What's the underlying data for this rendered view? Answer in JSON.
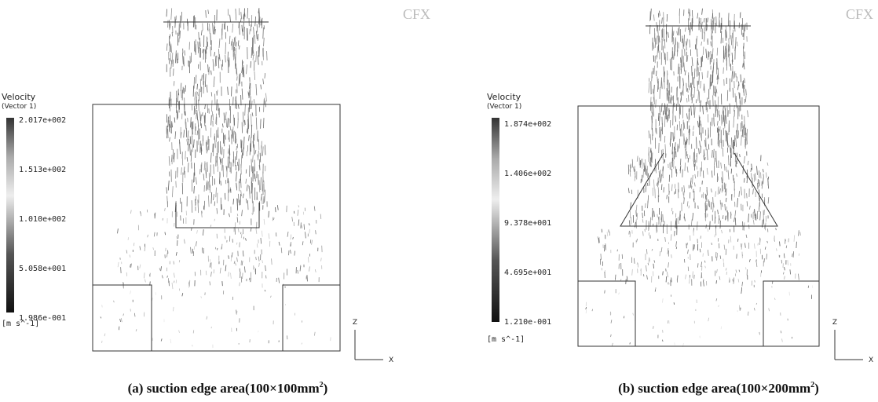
{
  "panels": [
    {
      "logo": "CFX",
      "legend": {
        "title": "Velocity",
        "subtitle": "(Vector 1)",
        "labels": [
          "2.017e+002",
          "1.513e+002",
          "1.010e+002",
          "5.058e+001",
          "1.986e-001"
        ],
        "unit": "[m s^-1]"
      },
      "axes": {
        "vertical": "Z",
        "horizontal": "X"
      },
      "caption": {
        "text": "(a) suction edge area(100×100mm",
        "sup": "2",
        "end": ")"
      }
    },
    {
      "logo": "CFX",
      "legend": {
        "title": "Velocity",
        "subtitle": "(Vector 1)",
        "labels": [
          "1.874e+002",
          "1.406e+002",
          "9.378e+001",
          "4.695e+001",
          "1.210e-001"
        ],
        "unit": "[m s^-1]"
      },
      "axes": {
        "vertical": "Z",
        "horizontal": "X"
      },
      "caption": {
        "text": "(b) suction edge area(100×200mm",
        "sup": "2",
        "end": ")"
      }
    }
  ]
}
